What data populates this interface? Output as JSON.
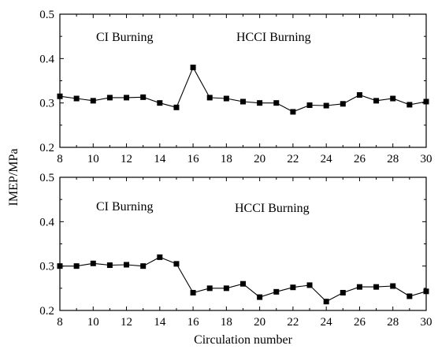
{
  "chart_data": [
    {
      "type": "line",
      "title": "",
      "xlabel": "",
      "ylabel": "",
      "xlim": [
        8,
        30
      ],
      "ylim": [
        0.2,
        0.5
      ],
      "x_ticks": [
        "8",
        "10",
        "12",
        "14",
        "16",
        "18",
        "20",
        "22",
        "24",
        "26",
        "28",
        "30"
      ],
      "y_ticks": [
        "0.2",
        "0.3",
        "0.4",
        "0.5"
      ],
      "annotations": [
        "CI Burning",
        "HCCI Burning"
      ],
      "grid": false,
      "marker": "filled-square",
      "line_color": "#000000",
      "series": [
        {
          "x": [
            8,
            9,
            10,
            11,
            12,
            13,
            14,
            15,
            16,
            17,
            18,
            19,
            20,
            21,
            22,
            23,
            24,
            25,
            26,
            27,
            28,
            29,
            30
          ],
          "values": [
            0.315,
            0.31,
            0.305,
            0.312,
            0.312,
            0.313,
            0.3,
            0.29,
            0.38,
            0.312,
            0.31,
            0.303,
            0.3,
            0.3,
            0.28,
            0.295,
            0.294,
            0.298,
            0.318,
            0.305,
            0.31,
            0.296,
            0.303
          ]
        }
      ]
    },
    {
      "type": "line",
      "title": "",
      "xlabel": "Circulation number",
      "ylabel": "",
      "xlim": [
        8,
        30
      ],
      "ylim": [
        0.2,
        0.5
      ],
      "x_ticks": [
        "8",
        "10",
        "12",
        "14",
        "16",
        "18",
        "20",
        "22",
        "24",
        "26",
        "28",
        "30"
      ],
      "y_ticks": [
        "0.2",
        "0.3",
        "0.4",
        "0.5"
      ],
      "annotations": [
        "CI Burning",
        "HCCI Burning"
      ],
      "grid": false,
      "marker": "filled-square",
      "line_color": "#000000",
      "series": [
        {
          "x": [
            8,
            9,
            10,
            11,
            12,
            13,
            14,
            15,
            16,
            17,
            18,
            19,
            20,
            21,
            22,
            23,
            24,
            25,
            26,
            27,
            28,
            29,
            30
          ],
          "values": [
            0.3,
            0.3,
            0.306,
            0.302,
            0.303,
            0.3,
            0.32,
            0.305,
            0.24,
            0.25,
            0.25,
            0.26,
            0.23,
            0.242,
            0.252,
            0.257,
            0.22,
            0.24,
            0.253,
            0.253,
            0.255,
            0.232,
            0.243
          ]
        }
      ]
    }
  ],
  "shared_ylabel": "IMEP/MPa"
}
